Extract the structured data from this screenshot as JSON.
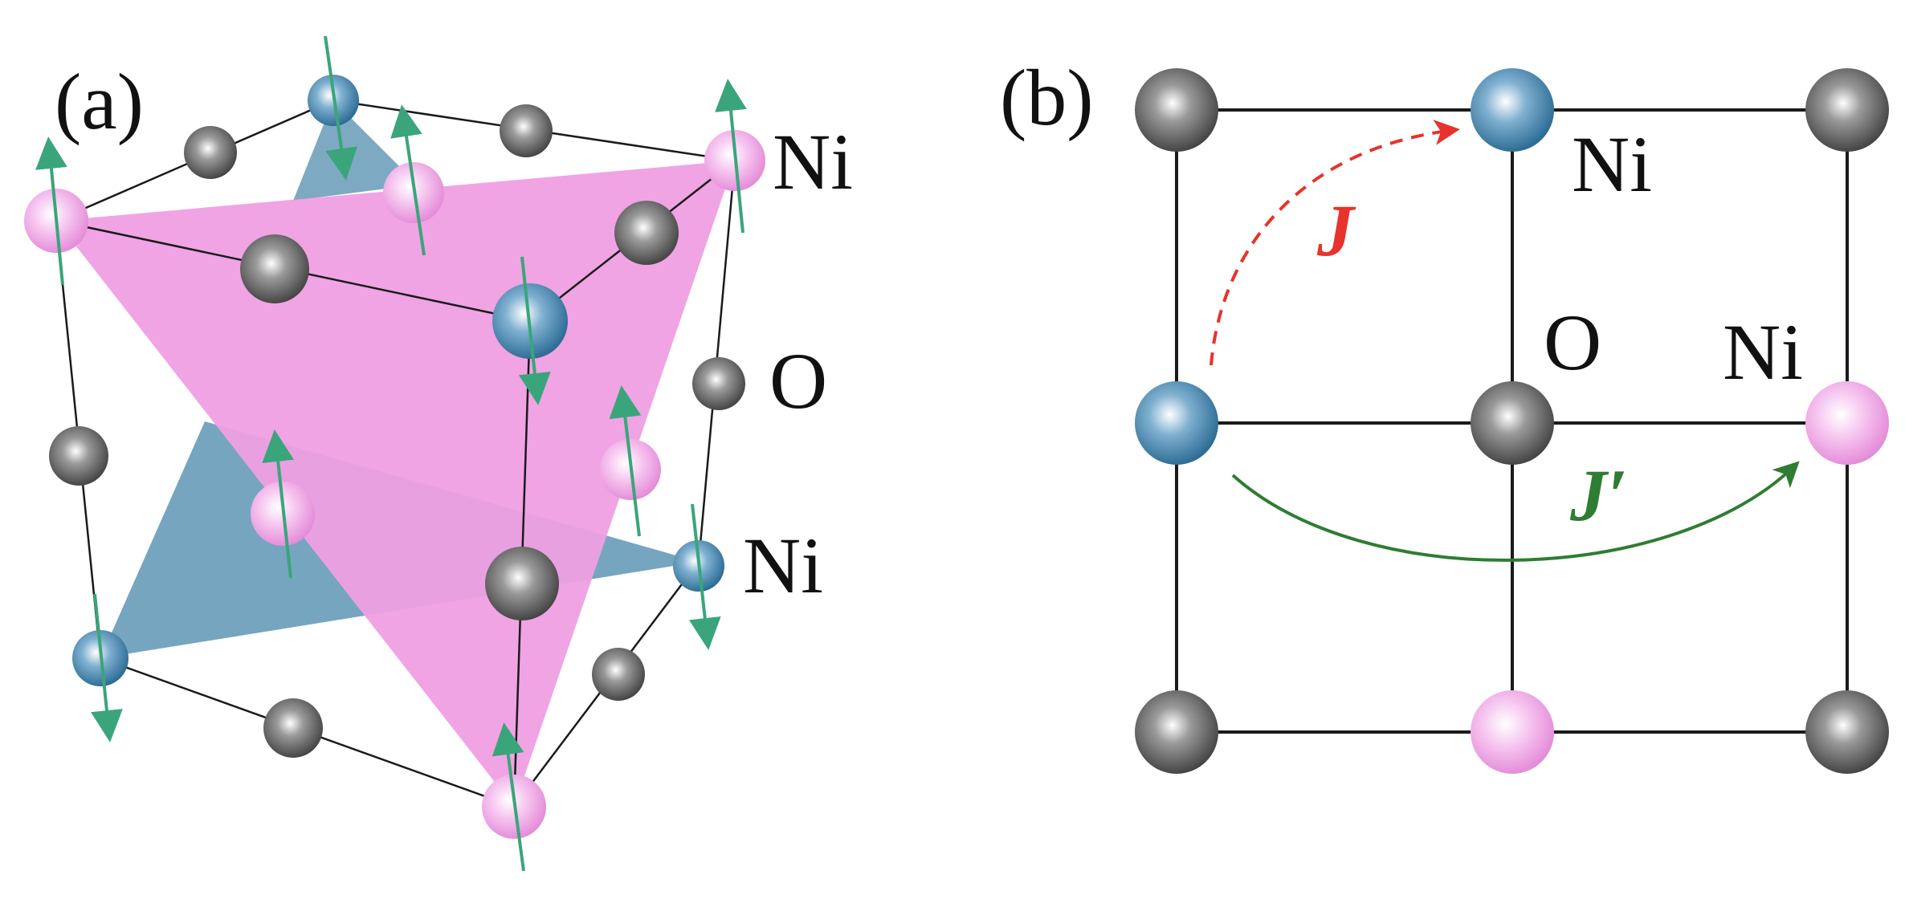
{
  "panels": {
    "a": {
      "label": "(a)"
    },
    "b": {
      "label": "(b)"
    }
  },
  "labels": {
    "ni": "Ni",
    "o": "O",
    "j": "J",
    "j_prime": "J′"
  },
  "colors": {
    "ni_up": "#ee9ee6",
    "ni_down": "#4d8fb8",
    "oxygen": "#555555",
    "spin_arrow": "#3aa57a",
    "plane_up": "#ef9fe3",
    "plane_down": "#6fa0bd",
    "coupling_j": "#e8322b",
    "coupling_j_prime": "#2e7d32",
    "bond": "#1a1a1a"
  }
}
